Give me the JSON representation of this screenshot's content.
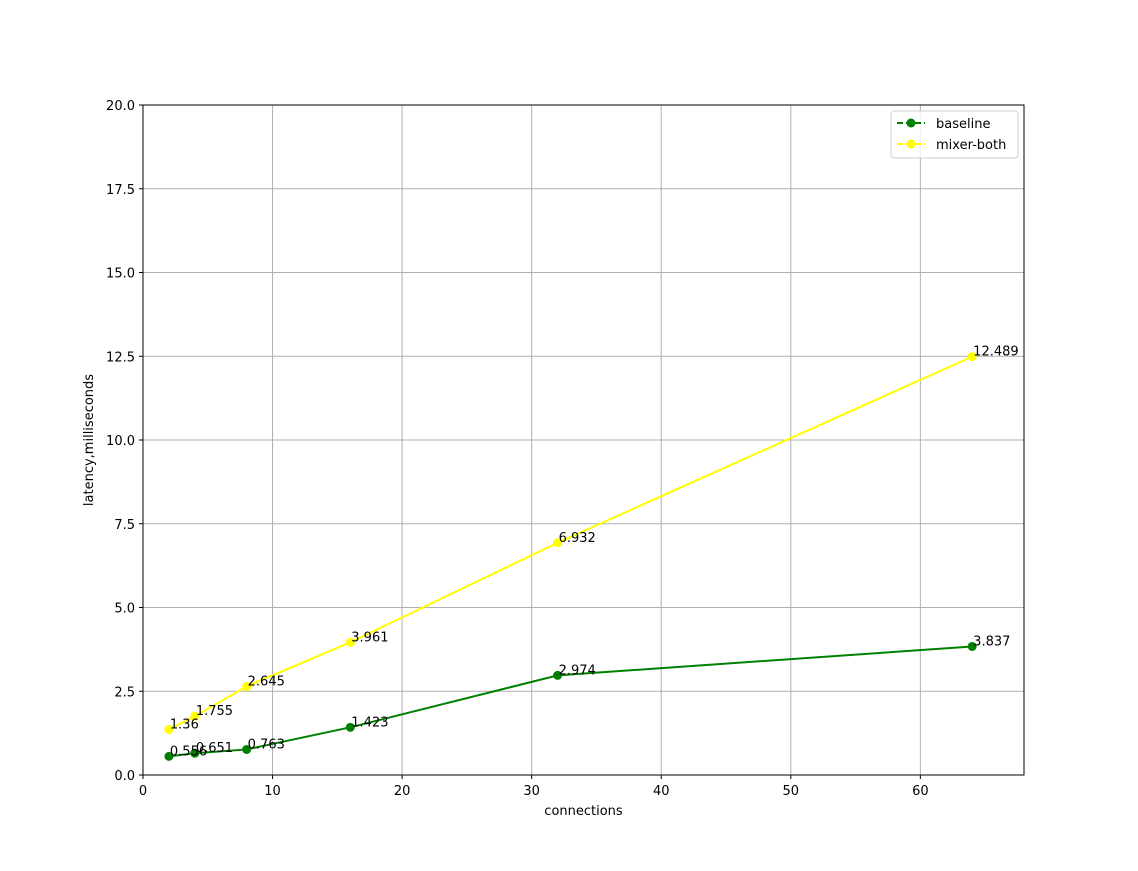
{
  "chart_data": {
    "type": "line",
    "title": "",
    "xlabel": "connections",
    "ylabel": "latency,milliseconds",
    "xlim": [
      0,
      68
    ],
    "ylim": [
      0,
      20
    ],
    "xticks": [
      0,
      10,
      20,
      30,
      40,
      50,
      60
    ],
    "yticks": [
      0.0,
      2.5,
      5.0,
      7.5,
      10.0,
      12.5,
      15.0,
      17.5,
      20.0
    ],
    "xtick_labels": [
      "0",
      "10",
      "20",
      "30",
      "40",
      "50",
      "60"
    ],
    "ytick_labels": [
      "0.0",
      "2.5",
      "5.0",
      "7.5",
      "10.0",
      "12.5",
      "15.0",
      "17.5",
      "20.0"
    ],
    "grid": true,
    "legend_position": "top-right",
    "x": [
      2,
      4,
      8,
      16,
      32,
      64
    ],
    "series": [
      {
        "name": "baseline",
        "color": "#008000",
        "values": [
          0.556,
          0.651,
          0.763,
          1.423,
          2.974,
          3.837
        ],
        "labels": [
          "0.556",
          "0.651",
          "0.763",
          "1.423",
          "2.974",
          "3.837"
        ]
      },
      {
        "name": "mixer-both",
        "color": "#ffff00",
        "values": [
          1.36,
          1.755,
          2.645,
          3.961,
          6.932,
          12.489
        ],
        "labels": [
          "1.36",
          "1.755",
          "2.645",
          "3.961",
          "6.932",
          "12.489"
        ]
      }
    ]
  }
}
